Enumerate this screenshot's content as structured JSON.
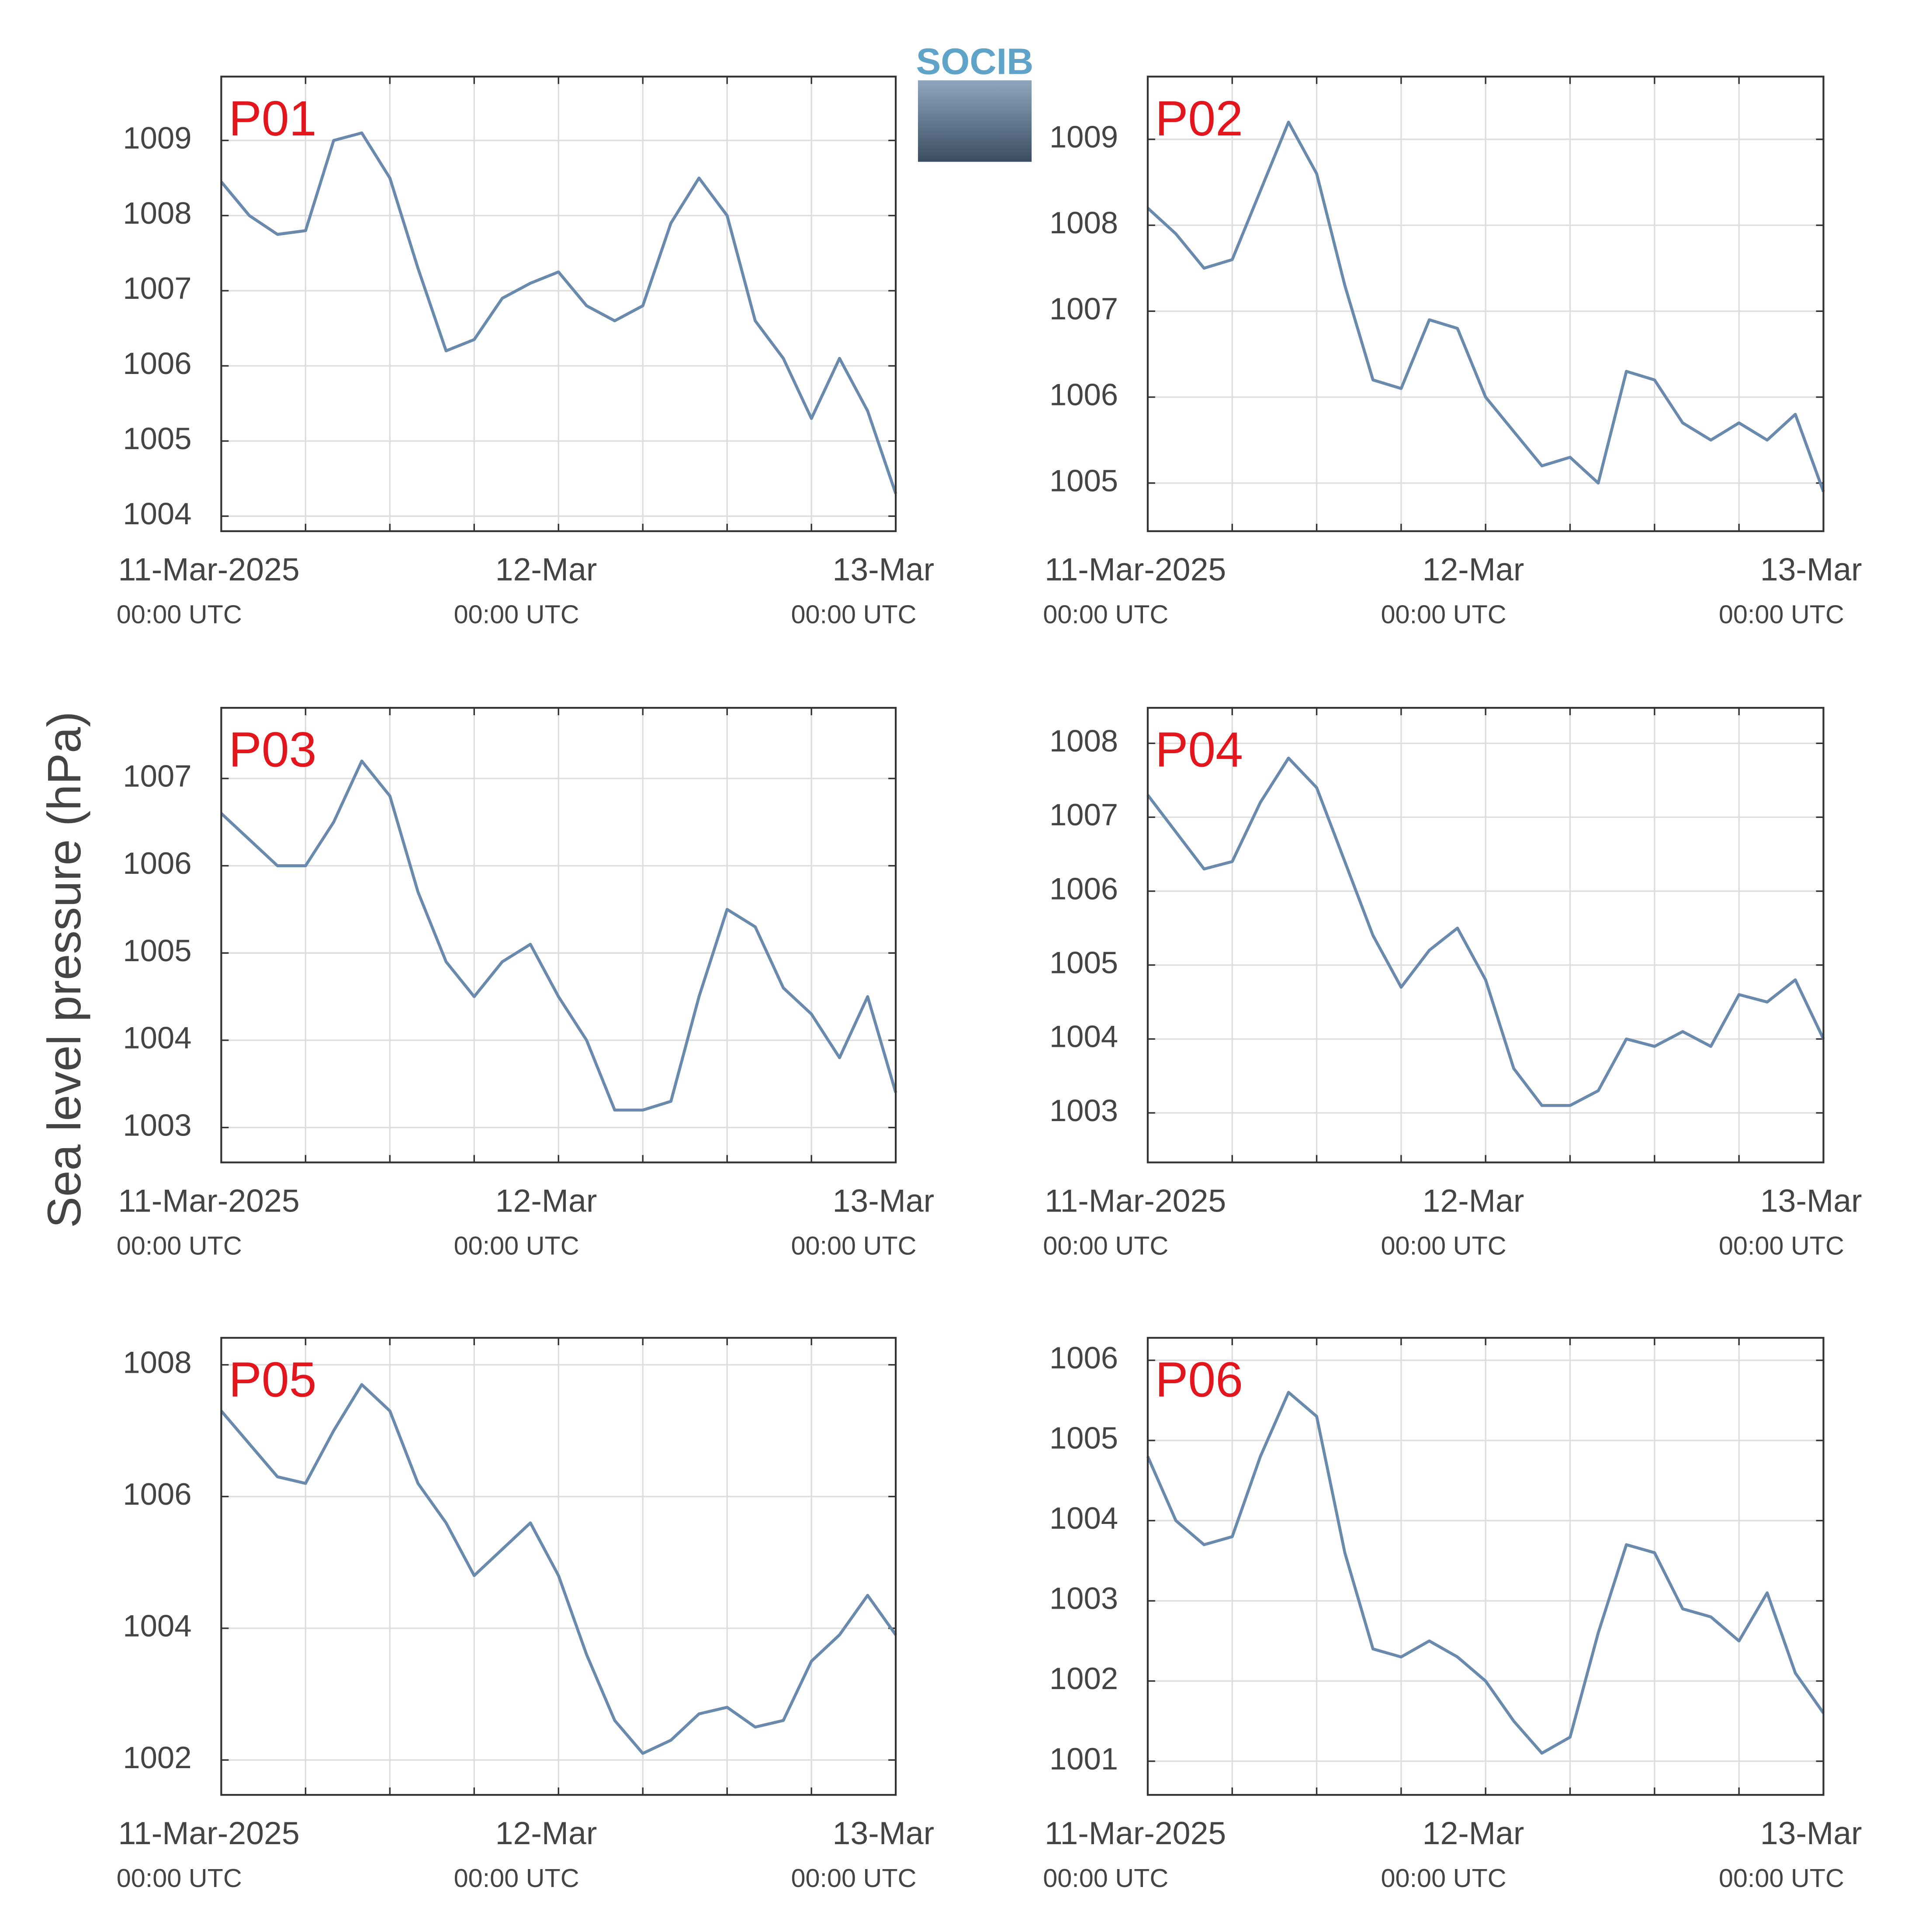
{
  "logo": "SOCIB",
  "ylabel": "Sea level pressure (hPa)",
  "chart_data": [
    {
      "type": "line",
      "title": "P01",
      "color": "#6a8aad",
      "x": [
        "2025-03-11 00:00",
        "2025-03-11 02:00",
        "2025-03-11 04:00",
        "2025-03-11 06:00",
        "2025-03-11 08:00",
        "2025-03-11 10:00",
        "2025-03-11 12:00",
        "2025-03-11 14:00",
        "2025-03-11 16:00",
        "2025-03-11 18:00",
        "2025-03-11 20:00",
        "2025-03-11 22:00",
        "2025-03-12 00:00",
        "2025-03-12 02:00",
        "2025-03-12 04:00",
        "2025-03-12 06:00",
        "2025-03-12 08:00",
        "2025-03-12 10:00",
        "2025-03-12 12:00",
        "2025-03-12 14:00",
        "2025-03-12 16:00",
        "2025-03-12 18:00",
        "2025-03-12 20:00",
        "2025-03-12 22:00",
        "2025-03-13 00:00"
      ],
      "values": [
        1008.45,
        1008.0,
        1007.75,
        1007.8,
        1009.0,
        1009.1,
        1008.5,
        1007.3,
        1006.2,
        1006.35,
        1006.9,
        1007.1,
        1007.25,
        1006.8,
        1006.6,
        1006.8,
        1007.9,
        1008.5,
        1008.0,
        1006.6,
        1006.1,
        1005.3,
        1006.1,
        1005.4,
        1004.3
      ],
      "xlim": [
        "2025-03-11 00:00",
        "2025-03-13 00:00"
      ],
      "xticks": [
        {
          "value": "2025-03-11 00:00",
          "label": "11-Mar-2025",
          "sublabel": "00:00 UTC"
        },
        {
          "value": "2025-03-11 06:00"
        },
        {
          "value": "2025-03-11 12:00"
        },
        {
          "value": "2025-03-11 18:00"
        },
        {
          "value": "2025-03-12 00:00",
          "label": "12-Mar",
          "sublabel": "00:00 UTC"
        },
        {
          "value": "2025-03-12 06:00"
        },
        {
          "value": "2025-03-12 12:00"
        },
        {
          "value": "2025-03-12 18:00"
        },
        {
          "value": "2025-03-13 00:00",
          "label": "13-Mar",
          "sublabel": "00:00 UTC"
        }
      ],
      "ylim": [
        1003.8,
        1009.85
      ],
      "yticks": [
        1004,
        1005,
        1006,
        1007,
        1008,
        1009
      ],
      "grid": true
    },
    {
      "type": "line",
      "title": "P02",
      "color": "#6a8aad",
      "x": [
        "2025-03-11 00:00",
        "2025-03-11 02:00",
        "2025-03-11 04:00",
        "2025-03-11 06:00",
        "2025-03-11 08:00",
        "2025-03-11 10:00",
        "2025-03-11 12:00",
        "2025-03-11 14:00",
        "2025-03-11 16:00",
        "2025-03-11 18:00",
        "2025-03-11 20:00",
        "2025-03-11 22:00",
        "2025-03-12 00:00",
        "2025-03-12 02:00",
        "2025-03-12 04:00",
        "2025-03-12 06:00",
        "2025-03-12 08:00",
        "2025-03-12 10:00",
        "2025-03-12 12:00",
        "2025-03-12 14:00",
        "2025-03-12 16:00",
        "2025-03-12 18:00",
        "2025-03-12 20:00",
        "2025-03-12 22:00",
        "2025-03-13 00:00"
      ],
      "values": [
        1008.2,
        1007.9,
        1007.5,
        1007.6,
        1008.4,
        1009.2,
        1008.6,
        1007.3,
        1006.2,
        1006.1,
        1006.9,
        1006.8,
        1006.0,
        1005.6,
        1005.2,
        1005.3,
        1005.0,
        1006.3,
        1006.2,
        1005.7,
        1005.5,
        1005.7,
        1005.5,
        1005.8,
        1004.9
      ],
      "xlim": [
        "2025-03-11 00:00",
        "2025-03-13 00:00"
      ],
      "xticks": [
        {
          "value": "2025-03-11 00:00",
          "label": "11-Mar-2025",
          "sublabel": "00:00 UTC"
        },
        {
          "value": "2025-03-11 06:00"
        },
        {
          "value": "2025-03-11 12:00"
        },
        {
          "value": "2025-03-11 18:00"
        },
        {
          "value": "2025-03-12 00:00",
          "label": "12-Mar",
          "sublabel": "00:00 UTC"
        },
        {
          "value": "2025-03-12 06:00"
        },
        {
          "value": "2025-03-12 12:00"
        },
        {
          "value": "2025-03-12 18:00"
        },
        {
          "value": "2025-03-13 00:00",
          "label": "13-Mar",
          "sublabel": "00:00 UTC"
        }
      ],
      "ylim": [
        1004.44,
        1009.73
      ],
      "yticks": [
        1005,
        1006,
        1007,
        1008,
        1009
      ],
      "grid": true
    },
    {
      "type": "line",
      "title": "P03",
      "color": "#6a8aad",
      "x": [
        "2025-03-11 00:00",
        "2025-03-11 02:00",
        "2025-03-11 04:00",
        "2025-03-11 06:00",
        "2025-03-11 08:00",
        "2025-03-11 10:00",
        "2025-03-11 12:00",
        "2025-03-11 14:00",
        "2025-03-11 16:00",
        "2025-03-11 18:00",
        "2025-03-11 20:00",
        "2025-03-11 22:00",
        "2025-03-12 00:00",
        "2025-03-12 02:00",
        "2025-03-12 04:00",
        "2025-03-12 06:00",
        "2025-03-12 08:00",
        "2025-03-12 10:00",
        "2025-03-12 12:00",
        "2025-03-12 14:00",
        "2025-03-12 16:00",
        "2025-03-12 18:00",
        "2025-03-12 20:00",
        "2025-03-12 22:00",
        "2025-03-13 00:00"
      ],
      "values": [
        1006.6,
        1006.3,
        1006.0,
        1006.0,
        1006.5,
        1007.2,
        1006.8,
        1005.7,
        1004.9,
        1004.5,
        1004.9,
        1005.1,
        1004.5,
        1004.0,
        1003.2,
        1003.2,
        1003.3,
        1004.5,
        1005.5,
        1005.3,
        1004.6,
        1004.3,
        1003.8,
        1004.5,
        1003.4
      ],
      "xlim": [
        "2025-03-11 00:00",
        "2025-03-13 00:00"
      ],
      "xticks": [
        {
          "value": "2025-03-11 00:00",
          "label": "11-Mar-2025",
          "sublabel": "00:00 UTC"
        },
        {
          "value": "2025-03-11 06:00"
        },
        {
          "value": "2025-03-11 12:00"
        },
        {
          "value": "2025-03-11 18:00"
        },
        {
          "value": "2025-03-12 00:00",
          "label": "12-Mar",
          "sublabel": "00:00 UTC"
        },
        {
          "value": "2025-03-12 06:00"
        },
        {
          "value": "2025-03-12 12:00"
        },
        {
          "value": "2025-03-12 18:00"
        },
        {
          "value": "2025-03-13 00:00",
          "label": "13-Mar",
          "sublabel": "00:00 UTC"
        }
      ],
      "ylim": [
        1002.6,
        1007.81
      ],
      "yticks": [
        1003,
        1004,
        1005,
        1006,
        1007
      ],
      "grid": true
    },
    {
      "type": "line",
      "title": "P04",
      "color": "#6a8aad",
      "x": [
        "2025-03-11 00:00",
        "2025-03-11 02:00",
        "2025-03-11 04:00",
        "2025-03-11 06:00",
        "2025-03-11 08:00",
        "2025-03-11 10:00",
        "2025-03-11 12:00",
        "2025-03-11 14:00",
        "2025-03-11 16:00",
        "2025-03-11 18:00",
        "2025-03-11 20:00",
        "2025-03-11 22:00",
        "2025-03-12 00:00",
        "2025-03-12 02:00",
        "2025-03-12 04:00",
        "2025-03-12 06:00",
        "2025-03-12 08:00",
        "2025-03-12 10:00",
        "2025-03-12 12:00",
        "2025-03-12 14:00",
        "2025-03-12 16:00",
        "2025-03-12 18:00",
        "2025-03-12 20:00",
        "2025-03-12 22:00",
        "2025-03-13 00:00"
      ],
      "values": [
        1007.3,
        1006.8,
        1006.3,
        1006.4,
        1007.2,
        1007.8,
        1007.4,
        1006.4,
        1005.4,
        1004.7,
        1005.2,
        1005.5,
        1004.8,
        1003.6,
        1003.1,
        1003.1,
        1003.3,
        1004.0,
        1003.9,
        1004.1,
        1003.9,
        1004.6,
        1004.5,
        1004.8,
        1004.0
      ],
      "xlim": [
        "2025-03-11 00:00",
        "2025-03-13 00:00"
      ],
      "xticks": [
        {
          "value": "2025-03-11 00:00",
          "label": "11-Mar-2025",
          "sublabel": "00:00 UTC"
        },
        {
          "value": "2025-03-11 06:00"
        },
        {
          "value": "2025-03-11 12:00"
        },
        {
          "value": "2025-03-11 18:00"
        },
        {
          "value": "2025-03-12 00:00",
          "label": "12-Mar",
          "sublabel": "00:00 UTC"
        },
        {
          "value": "2025-03-12 06:00"
        },
        {
          "value": "2025-03-12 12:00"
        },
        {
          "value": "2025-03-12 18:00"
        },
        {
          "value": "2025-03-13 00:00",
          "label": "13-Mar",
          "sublabel": "00:00 UTC"
        }
      ],
      "ylim": [
        1002.33,
        1008.48
      ],
      "yticks": [
        1003,
        1004,
        1005,
        1006,
        1007,
        1008
      ],
      "grid": true
    },
    {
      "type": "line",
      "title": "P05",
      "color": "#6a8aad",
      "x": [
        "2025-03-11 00:00",
        "2025-03-11 02:00",
        "2025-03-11 04:00",
        "2025-03-11 06:00",
        "2025-03-11 08:00",
        "2025-03-11 10:00",
        "2025-03-11 12:00",
        "2025-03-11 14:00",
        "2025-03-11 16:00",
        "2025-03-11 18:00",
        "2025-03-11 20:00",
        "2025-03-11 22:00",
        "2025-03-12 00:00",
        "2025-03-12 02:00",
        "2025-03-12 04:00",
        "2025-03-12 06:00",
        "2025-03-12 08:00",
        "2025-03-12 10:00",
        "2025-03-12 12:00",
        "2025-03-12 14:00",
        "2025-03-12 16:00",
        "2025-03-12 18:00",
        "2025-03-12 20:00",
        "2025-03-12 22:00",
        "2025-03-13 00:00"
      ],
      "values": [
        1007.3,
        1006.8,
        1006.3,
        1006.2,
        1007.0,
        1007.7,
        1007.3,
        1006.2,
        1005.6,
        1004.8,
        1005.2,
        1005.6,
        1004.8,
        1003.6,
        1002.6,
        1002.1,
        1002.3,
        1002.7,
        1002.8,
        1002.5,
        1002.6,
        1003.5,
        1003.9,
        1004.5,
        1003.9
      ],
      "xlim": [
        "2025-03-11 00:00",
        "2025-03-13 00:00"
      ],
      "xticks": [
        {
          "value": "2025-03-11 00:00",
          "label": "11-Mar-2025",
          "sublabel": "00:00 UTC"
        },
        {
          "value": "2025-03-11 06:00"
        },
        {
          "value": "2025-03-11 12:00"
        },
        {
          "value": "2025-03-11 18:00"
        },
        {
          "value": "2025-03-12 00:00",
          "label": "12-Mar",
          "sublabel": "00:00 UTC"
        },
        {
          "value": "2025-03-12 06:00"
        },
        {
          "value": "2025-03-12 12:00"
        },
        {
          "value": "2025-03-12 18:00"
        },
        {
          "value": "2025-03-13 00:00",
          "label": "13-Mar",
          "sublabel": "00:00 UTC"
        }
      ],
      "ylim": [
        1001.47,
        1008.41
      ],
      "yticks": [
        1002,
        1004,
        1006,
        1008
      ],
      "grid": true
    },
    {
      "type": "line",
      "title": "P06",
      "color": "#6a8aad",
      "x": [
        "2025-03-11 00:00",
        "2025-03-11 02:00",
        "2025-03-11 04:00",
        "2025-03-11 06:00",
        "2025-03-11 08:00",
        "2025-03-11 10:00",
        "2025-03-11 12:00",
        "2025-03-11 14:00",
        "2025-03-11 16:00",
        "2025-03-11 18:00",
        "2025-03-11 20:00",
        "2025-03-11 22:00",
        "2025-03-12 00:00",
        "2025-03-12 02:00",
        "2025-03-12 04:00",
        "2025-03-12 06:00",
        "2025-03-12 08:00",
        "2025-03-12 10:00",
        "2025-03-12 12:00",
        "2025-03-12 14:00",
        "2025-03-12 16:00",
        "2025-03-12 18:00",
        "2025-03-12 20:00",
        "2025-03-12 22:00",
        "2025-03-13 00:00"
      ],
      "values": [
        1004.8,
        1004.0,
        1003.7,
        1003.8,
        1004.8,
        1005.6,
        1005.3,
        1003.6,
        1002.4,
        1002.3,
        1002.5,
        1002.3,
        1002.0,
        1001.5,
        1001.1,
        1001.3,
        1002.6,
        1003.7,
        1003.6,
        1002.9,
        1002.8,
        1002.5,
        1003.1,
        1002.1,
        1001.6
      ],
      "xlim": [
        "2025-03-11 00:00",
        "2025-03-13 00:00"
      ],
      "xticks": [
        {
          "value": "2025-03-11 00:00",
          "label": "11-Mar-2025",
          "sublabel": "00:00 UTC"
        },
        {
          "value": "2025-03-11 06:00"
        },
        {
          "value": "2025-03-11 12:00"
        },
        {
          "value": "2025-03-11 18:00"
        },
        {
          "value": "2025-03-12 00:00",
          "label": "12-Mar",
          "sublabel": "00:00 UTC"
        },
        {
          "value": "2025-03-12 06:00"
        },
        {
          "value": "2025-03-12 12:00"
        },
        {
          "value": "2025-03-12 18:00"
        },
        {
          "value": "2025-03-13 00:00",
          "label": "13-Mar",
          "sublabel": "00:00 UTC"
        }
      ],
      "ylim": [
        1000.58,
        1006.28
      ],
      "yticks": [
        1001,
        1002,
        1003,
        1004,
        1005,
        1006
      ],
      "grid": true
    }
  ]
}
